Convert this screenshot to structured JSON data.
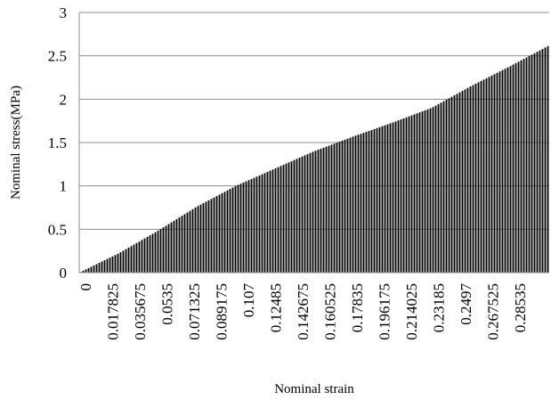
{
  "chart_data": {
    "type": "bar",
    "title": "",
    "xlabel": "Nominal strain",
    "ylabel": "Nominal stress(MPa)",
    "ylim": [
      0,
      3
    ],
    "y_ticks": [
      "0",
      "0.5",
      "1",
      "1.5",
      "2",
      "2.5",
      "3"
    ],
    "x_tick_labels": [
      "0",
      "0.017825",
      "0.035675",
      "0.0535",
      "0.071325",
      "0.089175",
      "0.107",
      "0.12485",
      "0.142675",
      "0.160525",
      "0.17835",
      "0.196175",
      "0.214025",
      "0.23185",
      "0.2497",
      "0.267525",
      "0.28535"
    ],
    "x_range": [
      0,
      0.3
    ],
    "grid": "horizontal",
    "legend": "none",
    "bar_color": "#000000",
    "series": [
      {
        "x": [
          0,
          0.025,
          0.05,
          0.075,
          0.1,
          0.125,
          0.15,
          0.175,
          0.2,
          0.225,
          0.25,
          0.275,
          0.3
        ],
        "values": [
          0.0,
          0.22,
          0.48,
          0.76,
          1.0,
          1.2,
          1.4,
          1.57,
          1.73,
          1.9,
          2.15,
          2.38,
          2.62
        ]
      }
    ]
  }
}
